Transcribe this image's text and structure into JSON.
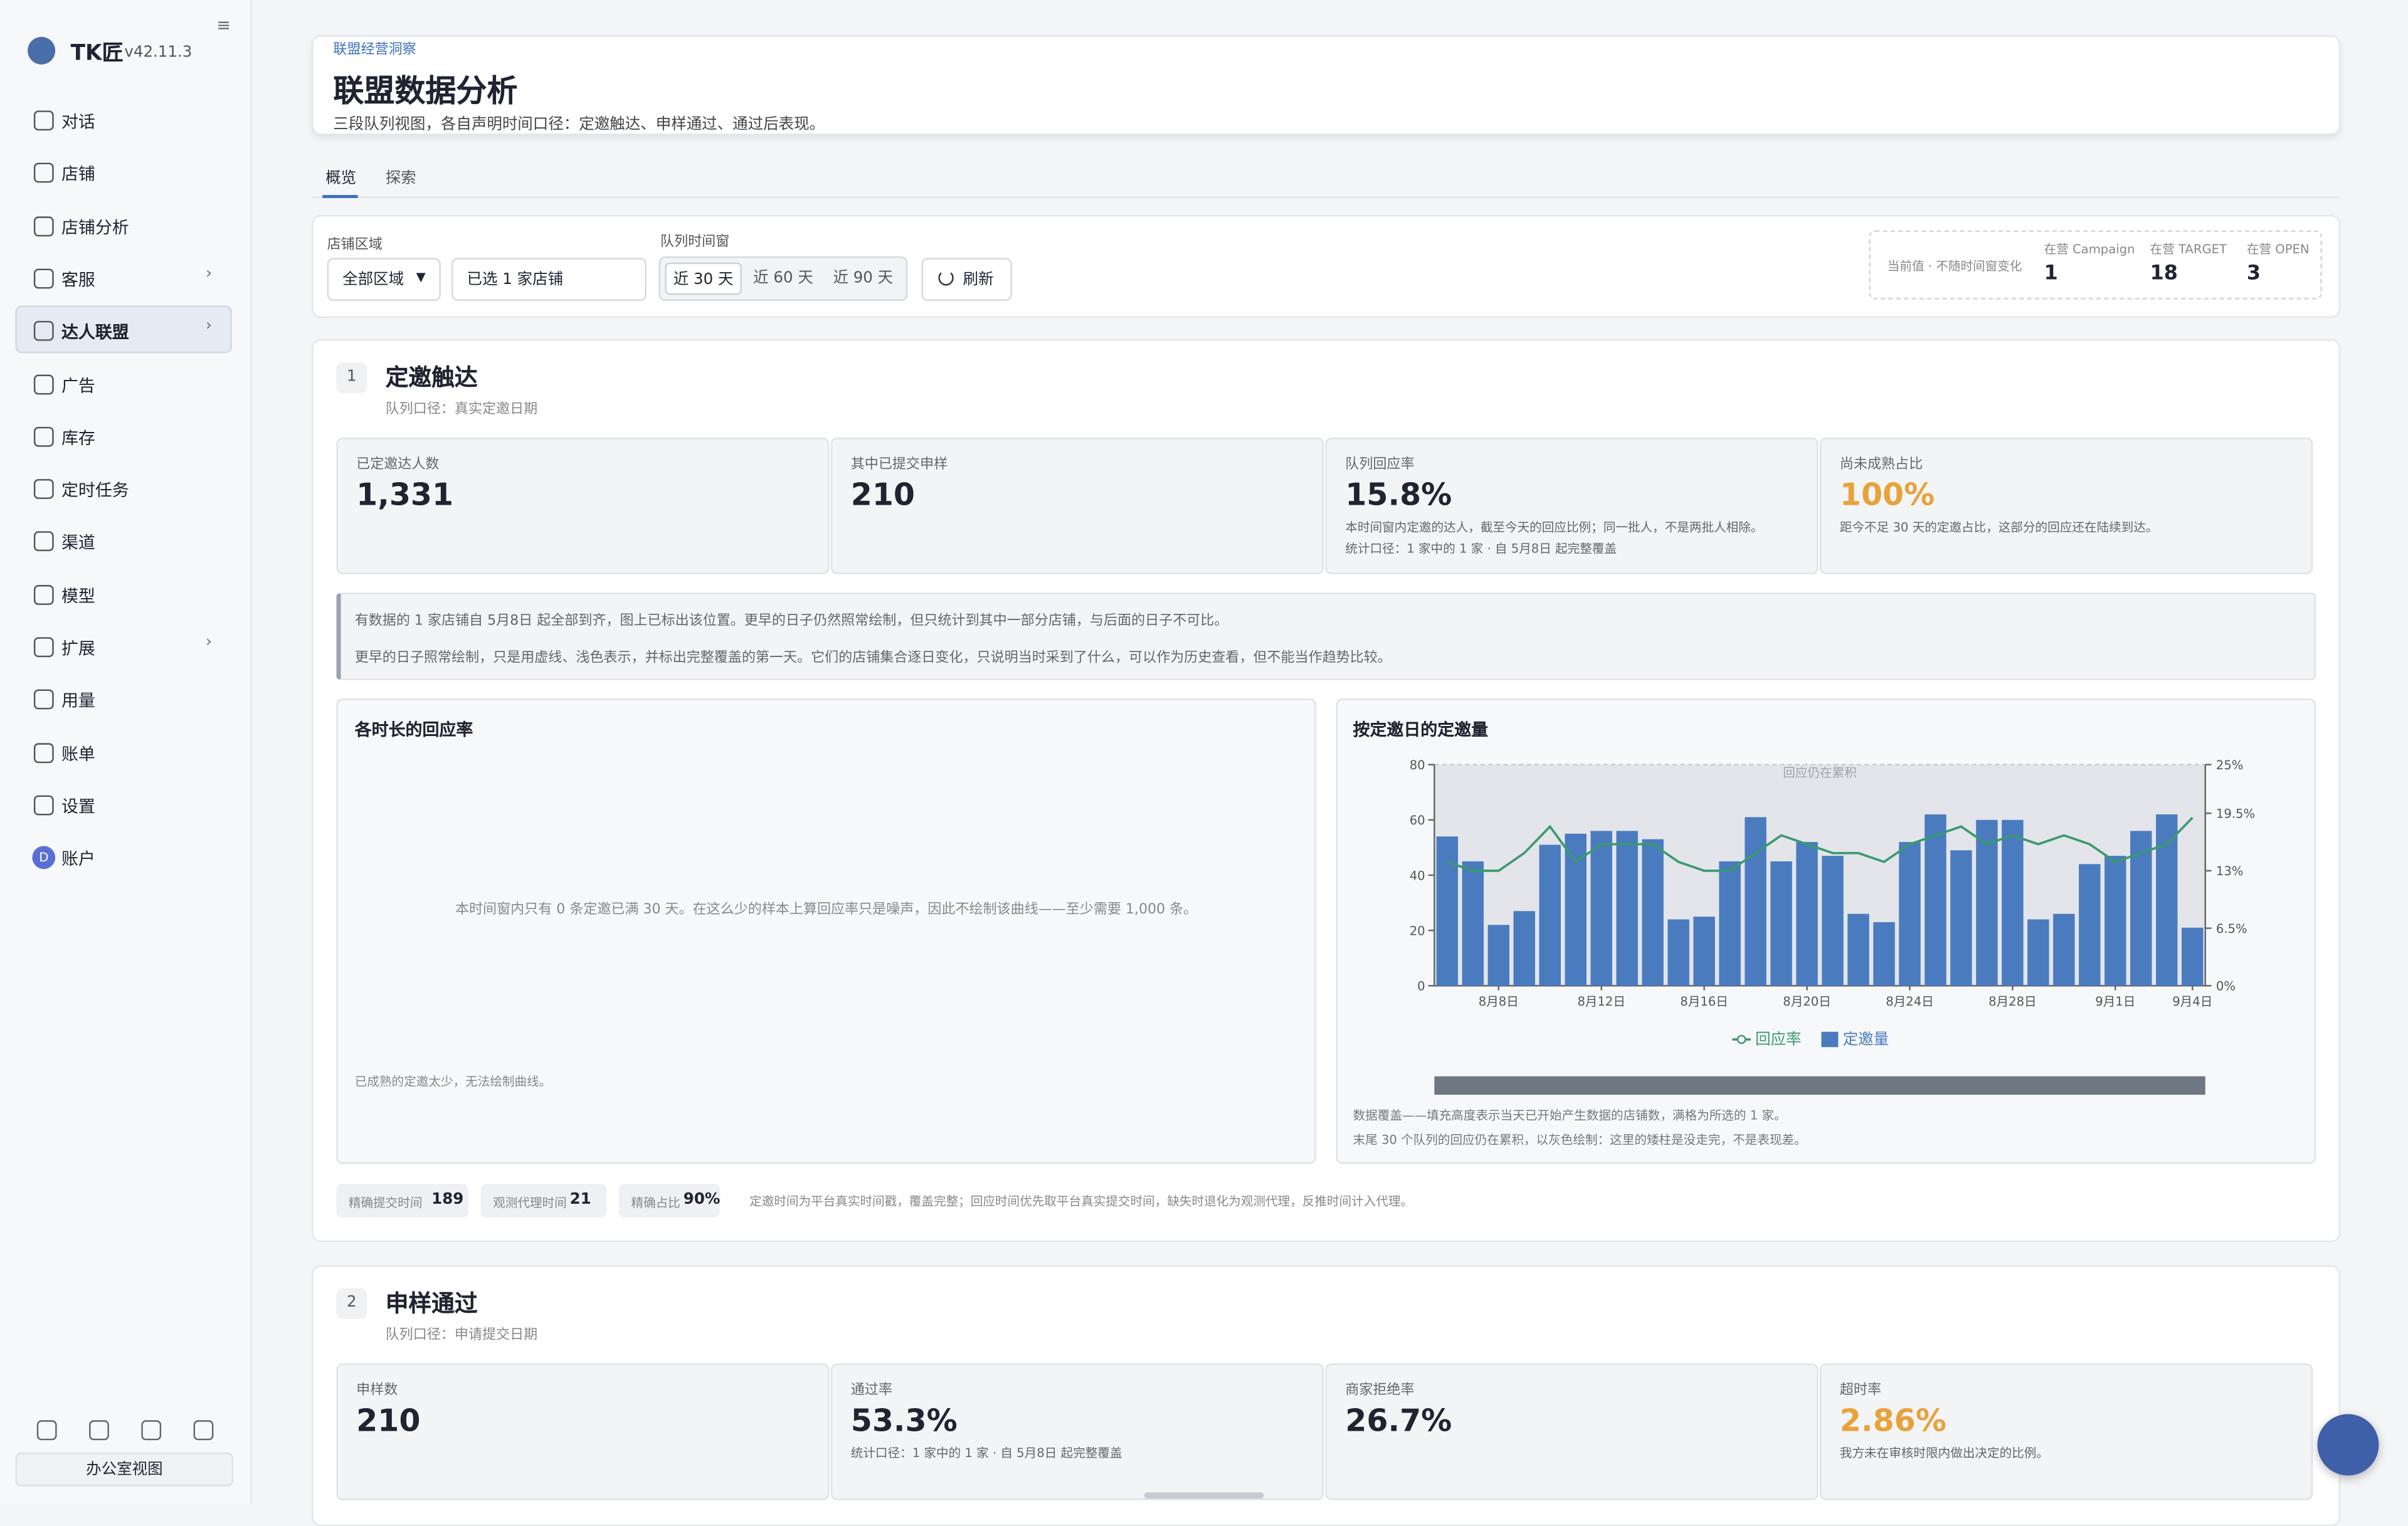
{
  "sidebar": {
    "brand": "TK匠",
    "version": "v42.11.3",
    "nav": [
      "对话",
      "店铺",
      "店铺分析",
      "客服",
      "达人联盟",
      "广告",
      "库存",
      "定时任务",
      "渠道",
      "模型",
      "扩展",
      "用量",
      "账单",
      "设置",
      "账户"
    ],
    "avatar": "D",
    "footer_button": "办公室视图"
  },
  "header": {
    "eyebrow": "联盟经营洞察",
    "title": "联盟数据分析",
    "subtitle": "三段队列视图，各自声明时间口径：定邀触达、申样通过、通过后表现。"
  },
  "tabs": [
    "概览",
    "探索"
  ],
  "filters": {
    "region_label": "店铺区域",
    "region_value": "全部区域",
    "store_value": "已选 1 家店铺",
    "window_label": "队列时间窗",
    "windows": [
      "近 30 天",
      "近 60 天",
      "近 90 天"
    ],
    "refresh": "刷新"
  },
  "live": {
    "note": "当前值 · 不随时间窗变化",
    "stats": [
      {
        "label": "在营 Campaign",
        "value": "1"
      },
      {
        "label": "在营 TARGET",
        "value": "18"
      },
      {
        "label": "在营 OPEN",
        "value": "3"
      }
    ]
  },
  "section1": {
    "index": "1",
    "title": "定邀触达",
    "caption": "队列口径：真实定邀日期",
    "kpis": [
      {
        "label": "已定邀达人数",
        "value": "1,331"
      },
      {
        "label": "其中已提交申样",
        "value": "210"
      },
      {
        "label": "队列回应率",
        "value": "15.8%",
        "notes": [
          "本时间窗内定邀的达人，截至今天的回应比例；同一批人，不是两批人相除。",
          "统计口径：1 家中的 1 家 · 自 5月8日 起完整覆盖"
        ]
      },
      {
        "label": "尚未成熟占比",
        "value": "100%",
        "color": "#e8a23a",
        "notes": [
          "距今不足 30 天的定邀占比，这部分的回应还在陆续到达。"
        ]
      }
    ],
    "notice": [
      "有数据的 1 家店铺自 5月8日 起全部到齐，图上已标出该位置。更早的日子仍然照常绘制，但只统计到其中一部分店铺，与后面的日子不可比。",
      "更早的日子照常绘制，只是用虚线、浅色表示，并标出完整覆盖的第一天。它们的店铺集合逐日变化，只说明当时采到了什么，可以作为历史查看，但不能当作趋势比较。"
    ],
    "panel": {
      "title": "各时长的回应率",
      "message": "本时间窗内只有 0 条定邀已满 30 天。在这么少的样本上算回应率只是噪声，因此不绘制该曲线——至少需要 1,000 条。",
      "footnote": "已成熟的定邀太少，无法绘制曲线。"
    },
    "chart_notes": [
      "数据覆盖——填充高度表示当天已开始产生数据的店铺数，满格为所选的 1 家。",
      "末尾 30 个队列的回应仍在累积，以灰色绘制：这里的矮柱是没走完，不是表现差。"
    ],
    "badges": [
      {
        "label": "精确提交时间",
        "value": "189"
      },
      {
        "label": "观测代理时间",
        "value": "21"
      },
      {
        "label": "精确占比",
        "value": "90%"
      }
    ],
    "footnote": "定邀时间为平台真实时间戳，覆盖完整；回应时间优先取平台真实提交时间，缺失时退化为观测代理，反推时间计入代理。"
  },
  "chart_data": {
    "type": "bar",
    "title": "按定邀日的定邀量",
    "annotation": "回应仍在累积",
    "categories": [
      null,
      null,
      "8月8日",
      null,
      null,
      null,
      "8月12日",
      null,
      null,
      null,
      "8月16日",
      null,
      null,
      null,
      "8月20日",
      null,
      null,
      null,
      "8月24日",
      null,
      null,
      null,
      "8月28日",
      null,
      null,
      null,
      "9月1日",
      null,
      null,
      "9月4日"
    ],
    "series": [
      {
        "name": "回应率",
        "type": "line",
        "axis": "y2",
        "color": "#3a9a6e",
        "values": [
          14,
          13,
          13,
          15,
          18,
          14,
          16,
          16,
          16,
          14,
          13,
          13,
          15,
          17,
          16,
          15,
          15,
          14,
          16,
          17,
          18,
          16,
          17,
          16,
          17,
          16,
          14,
          15,
          16,
          19
        ]
      },
      {
        "name": "定邀量",
        "type": "bar",
        "color": "#4a7bbf",
        "values": [
          54,
          45,
          22,
          27,
          51,
          55,
          56,
          56,
          53,
          24,
          25,
          45,
          61,
          45,
          52,
          47,
          26,
          23,
          52,
          62,
          49,
          60,
          60,
          24,
          26,
          44,
          47,
          56,
          62,
          21
        ]
      }
    ],
    "ylim": [
      0,
      80
    ],
    "yticks": [
      0,
      20,
      40,
      60,
      80
    ],
    "y2lim": [
      0,
      25
    ],
    "y2ticks": [
      {
        "value": 0,
        "label": "0%"
      },
      {
        "value": 6.5,
        "label": "6.5%"
      },
      {
        "value": 13,
        "label": "13%"
      },
      {
        "value": 19.5,
        "label": "19.5%"
      },
      {
        "value": 25,
        "label": "25%"
      }
    ]
  },
  "section2": {
    "index": "2",
    "title": "申样通过",
    "caption": "队列口径：申请提交日期",
    "kpis": [
      {
        "label": "申样数",
        "value": "210"
      },
      {
        "label": "通过率",
        "value": "53.3%",
        "notes": [
          "统计口径：1 家中的 1 家 · 自 5月8日 起完整覆盖"
        ]
      },
      {
        "label": "商家拒绝率",
        "value": "26.7%"
      },
      {
        "label": "超时率",
        "value": "2.86%",
        "color": "#e8a23a",
        "notes": [
          "我方未在审核时限内做出决定的比例。"
        ]
      }
    ]
  }
}
